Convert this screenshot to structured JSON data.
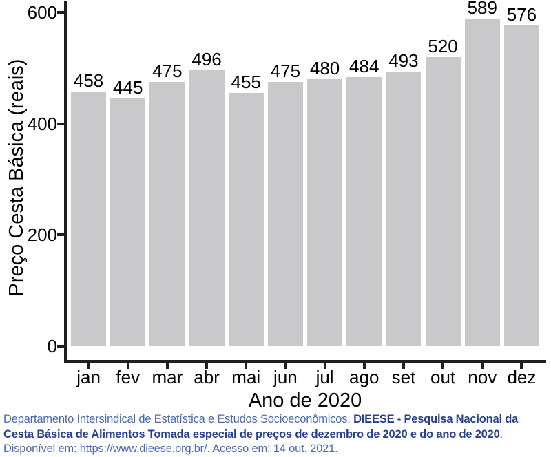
{
  "chart_data": {
    "type": "bar",
    "categories": [
      "jan",
      "fev",
      "mar",
      "abr",
      "mai",
      "jun",
      "jul",
      "ago",
      "set",
      "out",
      "nov",
      "dez"
    ],
    "values": [
      458,
      445,
      475,
      496,
      455,
      475,
      480,
      484,
      493,
      520,
      589,
      576
    ],
    "title": "",
    "xlabel": "Ano de 2020",
    "ylabel": "Preço Cesta Básica (reais)",
    "ylim": [
      0,
      600
    ],
    "yticks": [
      0,
      200,
      400,
      600
    ],
    "grid": false,
    "legend": false,
    "value_labels": true,
    "bar_color": "#c9c9cb"
  },
  "colors": {
    "axis": "#1f1f1f",
    "text": "#000000",
    "citation_regular": "#4a69b0",
    "citation_bold": "#273f94"
  },
  "citation": {
    "lines": [
      {
        "segments": [
          {
            "text": "Departamento Intersindical de Estatística e Estudos Socioeconômicos. ",
            "bold": false
          },
          {
            "text": "DIEESE - Pesquisa Nacional da",
            "bold": true
          }
        ]
      },
      {
        "segments": [
          {
            "text": "Cesta Básica de Alimentos Tomada especial de preços de dezembro de 2020 e do ano de 2020",
            "bold": true
          },
          {
            "text": ".",
            "bold": false
          }
        ]
      },
      {
        "segments": [
          {
            "text": "Disponível em: https://www.dieese.org.br/. Acesso em: 14 out. 2021.",
            "bold": false
          }
        ]
      }
    ]
  }
}
